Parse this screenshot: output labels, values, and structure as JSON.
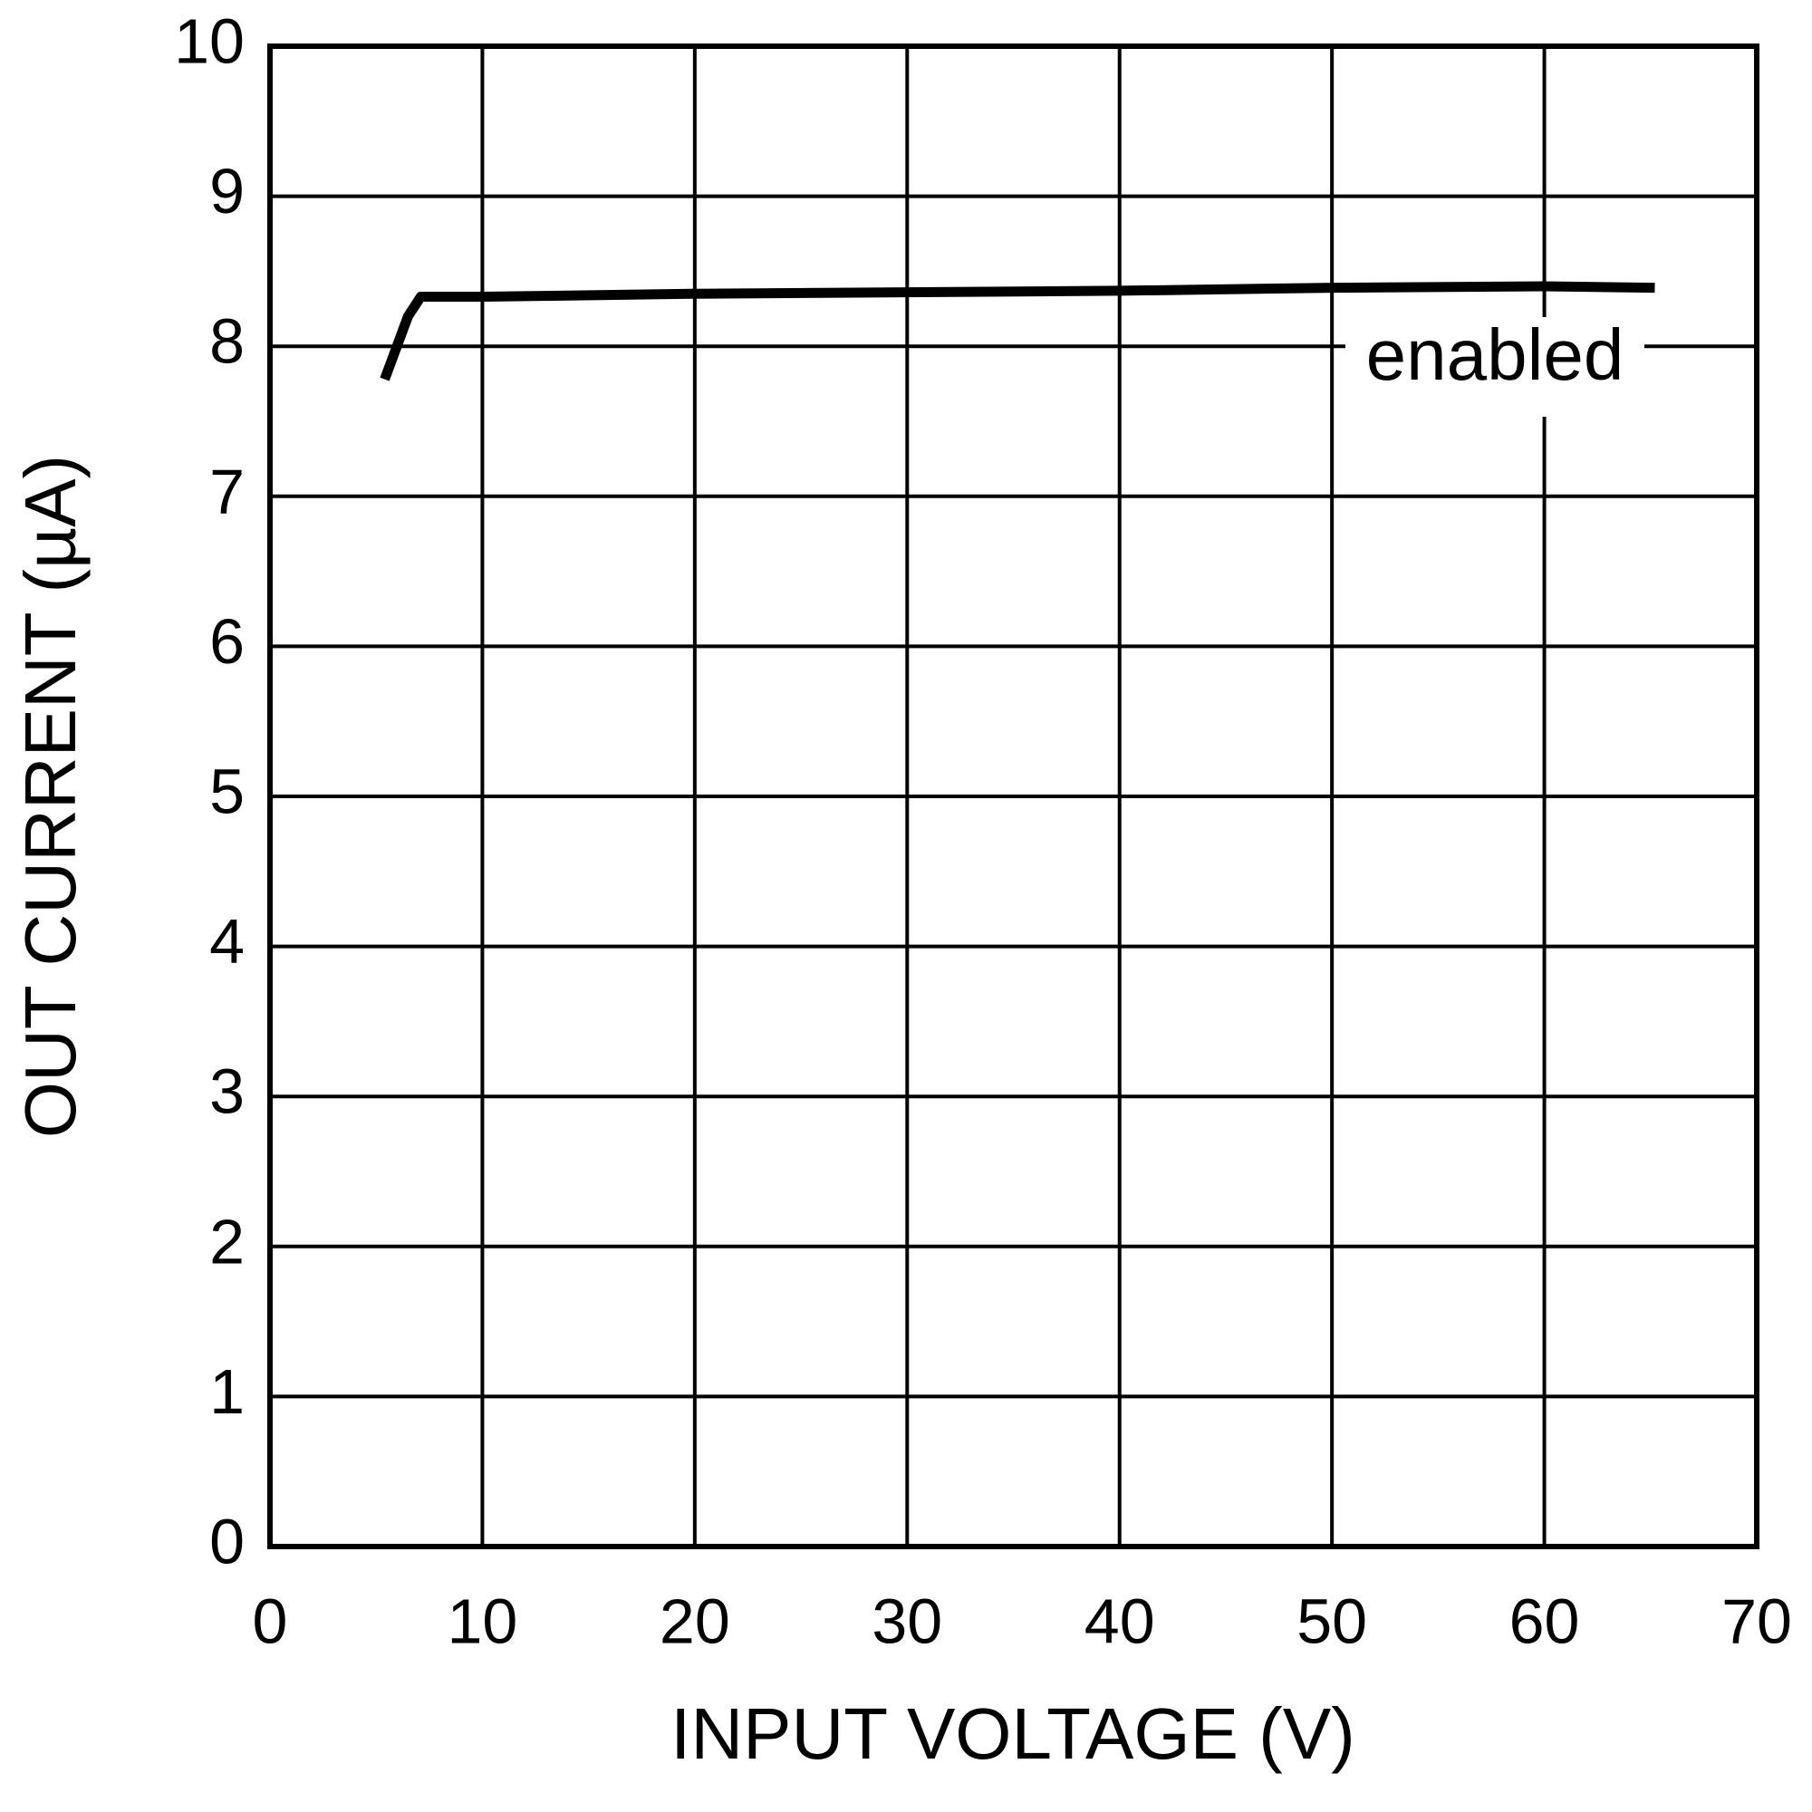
{
  "chart_data": {
    "type": "line",
    "xlabel": "INPUT VOLTAGE (V)",
    "ylabel": "OUT CURRENT (µA)",
    "annotation": "enabled",
    "xlim": [
      0,
      70
    ],
    "xticks": [
      0,
      10,
      20,
      30,
      40,
      50,
      60,
      70
    ],
    "ylim": [
      0,
      10
    ],
    "yticks": [
      0,
      1,
      2,
      3,
      4,
      5,
      6,
      7,
      8,
      9,
      10
    ],
    "grid": true,
    "series": [
      {
        "color": "#000000",
        "x": [
          5.4,
          6.5,
          7.1,
          7.5,
          10,
          20,
          30,
          40,
          50,
          60,
          65.2
        ],
        "values": [
          7.78,
          8.2,
          8.33,
          8.33,
          8.33,
          8.35,
          8.36,
          8.37,
          8.39,
          8.4,
          8.39
        ]
      }
    ]
  }
}
